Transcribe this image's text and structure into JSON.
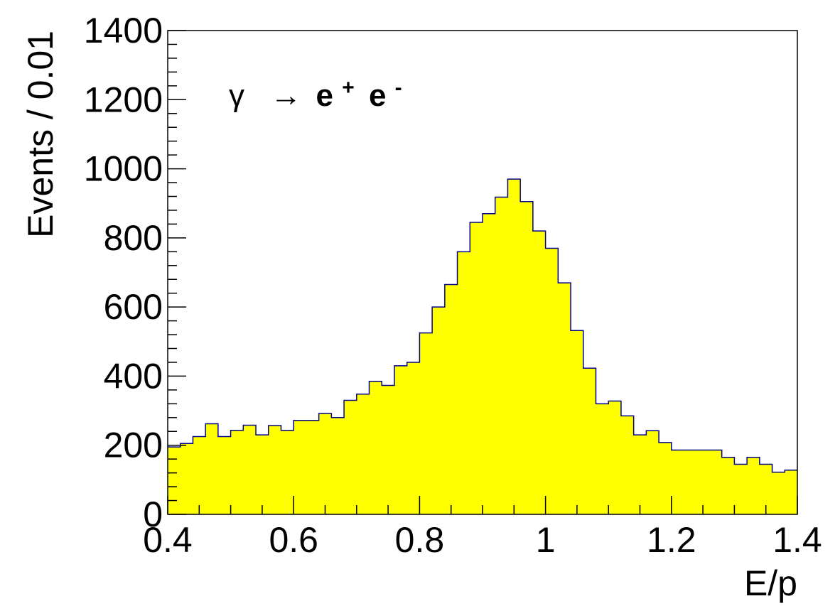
{
  "chart_data": {
    "type": "histogram",
    "xlabel": "E/p",
    "ylabel": "Events / 0.01",
    "xlim": [
      0.4,
      1.4
    ],
    "ylim": [
      0,
      1400
    ],
    "x_ticks": [
      "0.4",
      "0.6",
      "0.8",
      "1",
      "1.2",
      "1.4"
    ],
    "y_ticks": [
      "0",
      "200",
      "400",
      "600",
      "800",
      "1000",
      "1200",
      "1400"
    ],
    "bin_width": 0.02,
    "bin_start": 0.4,
    "values": [
      195,
      205,
      225,
      262,
      225,
      243,
      258,
      230,
      257,
      243,
      272,
      272,
      292,
      280,
      330,
      348,
      385,
      373,
      430,
      440,
      525,
      600,
      665,
      760,
      845,
      870,
      918,
      970,
      905,
      820,
      770,
      670,
      532,
      423,
      320,
      328,
      285,
      230,
      242,
      208,
      186,
      186,
      186,
      186,
      165,
      145,
      165,
      145,
      122,
      128
    ],
    "fill_color": "#ffff00",
    "line_color": "#00008b",
    "annotation": {
      "gamma": "γ",
      "arrow": "→",
      "e_plus": "e",
      "plus_sup": "+",
      "e_minus": "e",
      "minus_sup": "-"
    },
    "grid": false
  }
}
